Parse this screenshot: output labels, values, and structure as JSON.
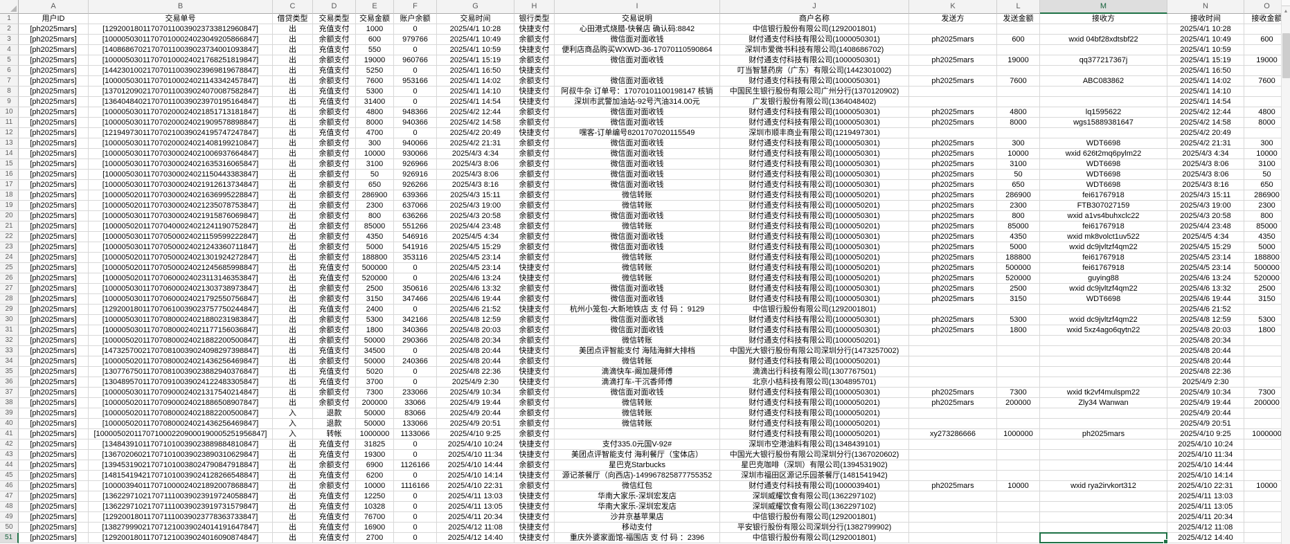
{
  "sheet": {
    "column_letters": [
      "A",
      "B",
      "C",
      "D",
      "E",
      "F",
      "G",
      "H",
      "I",
      "J",
      "K",
      "L",
      "M",
      "N",
      "O"
    ],
    "field_headers": [
      "用户ID",
      "交易单号",
      "借贷类型",
      "交易类型",
      "交易金额",
      "账户余额",
      "交易时间",
      "银行类型",
      "交易说明",
      "商户名称",
      "发送方",
      "发送金额",
      "接收方",
      "接收时间",
      "接收金额"
    ],
    "selection": {
      "column": "M",
      "row": 51
    },
    "rows": [
      [
        "[ph2025mars]",
        "[129200180117070110039023733812960847]",
        "出",
        "充值支付",
        "1000",
        "0",
        "2025/4/1 10:28",
        "快捷支付",
        "心田港式烧腊-快餐店 确认码:8842",
        "中信银行股份有限公司(1292001801)",
        "",
        "",
        "",
        "2025/4/1 10:28",
        ""
      ],
      [
        "[ph2025mars]",
        "[100005030117070100024023049205866847]",
        "出",
        "余额支付",
        "600",
        "979766",
        "2025/4/1 10:49",
        "余额支付",
        "微信面对面收钱",
        "财付通支付科技有限公司(1000050301)",
        "ph2025mars",
        "600",
        "wxid 04bf28xdtsbf22",
        "2025/4/1 10:49",
        "600"
      ],
      [
        "[ph2025mars]",
        "[140868670217070110039023734001093847]",
        "出",
        "充值支付",
        "550",
        "0",
        "2025/4/1 10:59",
        "快捷支付",
        "便利店商品购买WXWD-36-17070110590864",
        "深圳市爱微书科技有限公司(1408686702)",
        "",
        "",
        "",
        "2025/4/1 10:59",
        ""
      ],
      [
        "[ph2025mars]",
        "[100005030117070100024021768251819847]",
        "出",
        "余额支付",
        "19000",
        "960766",
        "2025/4/1 15:19",
        "余额支付",
        "微信面对面收钱",
        "财付通支付科技有限公司(1000050301)",
        "ph2025mars",
        "19000",
        "qq377217367j",
        "2025/4/1 15:19",
        "19000"
      ],
      [
        "[ph2025mars]",
        "[144230100217070110039023969819678847]",
        "出",
        "充值支付",
        "5250",
        "0",
        "2025/4/1 16:50",
        "快捷支付",
        "",
        "叮当智慧药房（广东）有限公司(1442301002)",
        "",
        "",
        "",
        "2025/4/1 16:50",
        ""
      ],
      [
        "[ph2025mars]",
        "[100005030117070100024021143342457847]",
        "出",
        "余额支付",
        "7600",
        "953166",
        "2025/4/1 14:02",
        "余额支付",
        "微信面对面收钱",
        "财付通支付科技有限公司(1000050301)",
        "ph2025mars",
        "7600",
        "ABC083862",
        "2025/4/1 14:02",
        "7600"
      ],
      [
        "[ph2025mars]",
        "[137012090217070110039024070087582847]",
        "出",
        "充值支付",
        "5300",
        "0",
        "2025/4/1 14:10",
        "快捷支付",
        "阿叔牛杂 订单号：17070101100198147 核销",
        "中国民生银行股份有限公司广州分行(1370120902)",
        "",
        "",
        "",
        "2025/4/1 14:10",
        ""
      ],
      [
        "[ph2025mars]",
        "[136404840217070110039023970195164847]",
        "出",
        "充值支付",
        "31400",
        "0",
        "2025/4/1 14:54",
        "快捷支付",
        "深圳市武警加油站-92号汽油314.00元",
        "广发银行股份有限公司(1364048402)",
        "",
        "",
        "",
        "2025/4/1 14:54",
        ""
      ],
      [
        "[ph2025mars]",
        "[100005030117070200024021851713181847]",
        "出",
        "余额支付",
        "4800",
        "948366",
        "2025/4/2 12:44",
        "余额支付",
        "微信面对面收钱",
        "财付通支付科技有限公司(1000050301)",
        "ph2025mars",
        "4800",
        "lq1595622",
        "2025/4/2 12:44",
        "4800"
      ],
      [
        "[ph2025mars]",
        "[100005030117070200024021909578898847]",
        "出",
        "余额支付",
        "8000",
        "940366",
        "2025/4/2 14:58",
        "余额支付",
        "微信面对面收钱",
        "财付通支付科技有限公司(1000050301)",
        "ph2025mars",
        "8000",
        "wgs15889381647",
        "2025/4/2 14:58",
        "8000"
      ],
      [
        "[ph2025mars]",
        "[121949730117070210039024195747247847]",
        "出",
        "充值支付",
        "4700",
        "0",
        "2025/4/2 20:49",
        "快捷支付",
        "嘿客-订单编号8201707020115549",
        "深圳市顺丰商业有限公司(1219497301)",
        "",
        "",
        "",
        "2025/4/2 20:49",
        ""
      ],
      [
        "[ph2025mars]",
        "[100005030117070200024021408199210847]",
        "出",
        "余额支付",
        "300",
        "940066",
        "2025/4/2 21:31",
        "余额支付",
        "微信面对面收钱",
        "财付通支付科技有限公司(1000050301)",
        "ph2025mars",
        "300",
        "WDT6698",
        "2025/4/2 21:31",
        "300"
      ],
      [
        "[ph2025mars]",
        "[100005030117070300024021006937664847]",
        "出",
        "余额支付",
        "10000",
        "930066",
        "2025/4/3 4:34",
        "余额支付",
        "微信面对面收钱",
        "财付通支付科技有限公司(1000050301)",
        "ph2025mars",
        "10000",
        "wxid 626t2mq6pylm22",
        "2025/4/3 4:34",
        "10000"
      ],
      [
        "[ph2025mars]",
        "[100005030117070300024021635316065847]",
        "出",
        "余额支付",
        "3100",
        "926966",
        "2025/4/3 8:06",
        "余额支付",
        "微信面对面收钱",
        "财付通支付科技有限公司(1000050301)",
        "ph2025mars",
        "3100",
        "WDT6698",
        "2025/4/3 8:06",
        "3100"
      ],
      [
        "[ph2025mars]",
        "[100005030117070300024021150443383847]",
        "出",
        "余额支付",
        "50",
        "926916",
        "2025/4/3 8:06",
        "余额支付",
        "微信面对面收钱",
        "财付通支付科技有限公司(1000050301)",
        "ph2025mars",
        "50",
        "WDT6698",
        "2025/4/3 8:06",
        "50"
      ],
      [
        "[ph2025mars]",
        "[100005030117070300024021912613734847]",
        "出",
        "余额支付",
        "650",
        "926266",
        "2025/4/3 8:16",
        "余额支付",
        "微信面对面收钱",
        "财付通支付科技有限公司(1000050301)",
        "ph2025mars",
        "650",
        "WDT6698",
        "2025/4/3 8:16",
        "650"
      ],
      [
        "[ph2025mars]",
        "[100005020117070300024021636995228847]",
        "出",
        "余额支付",
        "286900",
        "639366",
        "2025/4/3 15:11",
        "余额支付",
        "微信转账",
        "财付通支付科技有限公司(1000050201)",
        "ph2025mars",
        "286900",
        "fei61767918",
        "2025/4/3 15:11",
        "286900"
      ],
      [
        "[ph2025mars]",
        "[100005020117070300024021235078753847]",
        "出",
        "余额支付",
        "2300",
        "637066",
        "2025/4/3 19:00",
        "余额支付",
        "微信转账",
        "财付通支付科技有限公司(1000050201)",
        "ph2025mars",
        "2300",
        "FTB307027159",
        "2025/4/3 19:00",
        "2300"
      ],
      [
        "[ph2025mars]",
        "[100005030117070300024021915876069847]",
        "出",
        "余额支付",
        "800",
        "636266",
        "2025/4/3 20:58",
        "余额支付",
        "微信面对面收钱",
        "财付通支付科技有限公司(1000050301)",
        "ph2025mars",
        "800",
        "wxid a1vs4buhxclc22",
        "2025/4/3 20:58",
        "800"
      ],
      [
        "[ph2025mars]",
        "[100005020117070400024021241190752847]",
        "出",
        "余额支付",
        "85000",
        "551266",
        "2025/4/4 23:48",
        "余额支付",
        "微信转账",
        "财付通支付科技有限公司(1000050201)",
        "ph2025mars",
        "85000",
        "fei61767918",
        "2025/4/4 23:48",
        "85000"
      ],
      [
        "[ph2025mars]",
        "[100005030117070500024021159599222847]",
        "出",
        "余额支付",
        "4350",
        "546916",
        "2025/4/5 4:34",
        "余额支付",
        "微信面对面收钱",
        "财付通支付科技有限公司(1000050301)",
        "ph2025mars",
        "4350",
        "wxid mk8volct1uv522",
        "2025/4/5 4:34",
        "4350"
      ],
      [
        "[ph2025mars]",
        "[100005030117070500024021243360711847]",
        "出",
        "余额支付",
        "5000",
        "541916",
        "2025/4/5 15:29",
        "余额支付",
        "微信面对面收钱",
        "财付通支付科技有限公司(1000050301)",
        "ph2025mars",
        "5000",
        "wxid dc9jvltzf4qm22",
        "2025/4/5 15:29",
        "5000"
      ],
      [
        "[ph2025mars]",
        "[100005020117070500024021301924272847]",
        "出",
        "余额支付",
        "188800",
        "353116",
        "2025/4/5 23:14",
        "余额支付",
        "微信转账",
        "财付通支付科技有限公司(1000050201)",
        "ph2025mars",
        "188800",
        "fei61767918",
        "2025/4/5 23:14",
        "188800"
      ],
      [
        "[ph2025mars]",
        "[100005020117070500024021245685998847]",
        "出",
        "充值支付",
        "500000",
        "0",
        "2025/4/5 23:14",
        "快捷支付",
        "微信转账",
        "财付通支付科技有限公司(1000050201)",
        "ph2025mars",
        "500000",
        "fei61767918",
        "2025/4/5 23:14",
        "500000"
      ],
      [
        "[ph2025mars]",
        "[100005020117070600024023113146353847]",
        "出",
        "充值支付",
        "520000",
        "0",
        "2025/4/6 13:24",
        "快捷支付",
        "微信转账",
        "财付通支付科技有限公司(1000050201)",
        "ph2025mars",
        "520000",
        "guying88",
        "2025/4/6 13:24",
        "520000"
      ],
      [
        "[ph2025mars]",
        "[100005030117070600024021303738973847]",
        "出",
        "余额支付",
        "2500",
        "350616",
        "2025/4/6 13:32",
        "余额支付",
        "微信面对面收钱",
        "财付通支付科技有限公司(1000050301)",
        "ph2025mars",
        "2500",
        "wxid dc9jvltzf4qm22",
        "2025/4/6 13:32",
        "2500"
      ],
      [
        "[ph2025mars]",
        "[100005030117070600024021792550756847]",
        "出",
        "余额支付",
        "3150",
        "347466",
        "2025/4/6 19:44",
        "余额支付",
        "微信面对面收钱",
        "财付通支付科技有限公司(1000050301)",
        "ph2025mars",
        "3150",
        "WDT6698",
        "2025/4/6 19:44",
        "3150"
      ],
      [
        "[ph2025mars]",
        "[129200180117070610039023757750244847]",
        "出",
        "充值支付",
        "2400",
        "0",
        "2025/4/6 21:52",
        "快捷支付",
        "杭州小笼包-大新地铁店 支 付 码 ：9129",
        "中信银行股份有限公司(1292001801)",
        "",
        "",
        "",
        "2025/4/6 21:52",
        ""
      ],
      [
        "[ph2025mars]",
        "[100005030117070800024021880231983847]",
        "出",
        "余额支付",
        "5300",
        "342166",
        "2025/4/8 12:59",
        "余额支付",
        "微信面对面收钱",
        "财付通支付科技有限公司(1000050301)",
        "ph2025mars",
        "5300",
        "wxid dc9jvltzf4qm22",
        "2025/4/8 12:59",
        "5300"
      ],
      [
        "[ph2025mars]",
        "[100005030117070800024021177156036847]",
        "出",
        "余额支付",
        "1800",
        "340366",
        "2025/4/8 20:03",
        "余额支付",
        "微信面对面收钱",
        "财付通支付科技有限公司(1000050301)",
        "ph2025mars",
        "1800",
        "wxid 5xz4ago6qytn22",
        "2025/4/8 20:03",
        "1800"
      ],
      [
        "[ph2025mars]",
        "[100005020117070800024021882200500847]",
        "出",
        "余额支付",
        "50000",
        "290366",
        "2025/4/8 20:34",
        "余额支付",
        "微信转账",
        "财付通支付科技有限公司(1000050201)",
        "",
        "",
        "",
        "2025/4/8 20:34",
        ""
      ],
      [
        "[ph2025mars]",
        "[147325700217070810039024098297398847]",
        "出",
        "充值支付",
        "34500",
        "0",
        "2025/4/8 20:44",
        "快捷支付",
        "美团点评智能支付 海陆海鲜大排档",
        "中国光大银行股份有限公司深圳分行(1473257002)",
        "",
        "",
        "",
        "2025/4/8 20:44",
        ""
      ],
      [
        "[ph2025mars]",
        "[100005020117070800024021436256469847]",
        "出",
        "余额支付",
        "50000",
        "240366",
        "2025/4/8 20:44",
        "余额支付",
        "微信转账",
        "财付通支付科技有限公司(1000050201)",
        "",
        "",
        "",
        "2025/4/8 20:44",
        ""
      ],
      [
        "[ph2025mars]",
        "[130776750117070810039023882940376847]",
        "出",
        "充值支付",
        "5020",
        "0",
        "2025/4/8 22:36",
        "快捷支付",
        "滴滴快车-阚加晟师傅",
        "滴滴出行科技有限公司(1307767501)",
        "",
        "",
        "",
        "2025/4/8 22:36",
        ""
      ],
      [
        "[ph2025mars]",
        "[130489570117070910039024122483305847]",
        "出",
        "充值支付",
        "3700",
        "0",
        "2025/4/9 2:30",
        "快捷支付",
        "滴滴打车-干沉香师傅",
        "北京小桔科技有限公司(1304895701)",
        "",
        "",
        "",
        "2025/4/9 2:30",
        ""
      ],
      [
        "[ph2025mars]",
        "[100005030117070900024021317540214847]",
        "出",
        "余额支付",
        "7300",
        "233066",
        "2025/4/9 10:34",
        "余额支付",
        "微信面对面收钱",
        "财付通支付科技有限公司(1000050301)",
        "ph2025mars",
        "7300",
        "wxid tk2vf4mulspm22",
        "2025/4/9 10:34",
        "7300"
      ],
      [
        "[ph2025mars]",
        "[100005020117070900024021886508907847]",
        "出",
        "余额支付",
        "200000",
        "33066",
        "2025/4/9 19:44",
        "余额支付",
        "微信转账",
        "财付通支付科技有限公司(1000050201)",
        "ph2025mars",
        "200000",
        "Zly34 Wanwan",
        "2025/4/9 19:44",
        "200000"
      ],
      [
        "[ph2025mars]",
        "[100005020117070800024021882200500847]",
        "入",
        "退款",
        "50000",
        "83066",
        "2025/4/9 20:44",
        "余额支付",
        "微信转账",
        "财付通支付科技有限公司(1000050201)",
        "",
        "",
        "",
        "2025/4/9 20:44",
        ""
      ],
      [
        "[ph2025mars]",
        "[100005020117070800024021436256469847]",
        "入",
        "退款",
        "50000",
        "133066",
        "2025/4/9 20:51",
        "余额支付",
        "微信转账",
        "财付通支付科技有限公司(1000050201)",
        "",
        "",
        "",
        "2025/4/9 20:51",
        ""
      ],
      [
        "[ph2025mars]",
        "[1000050201170710002209000190005251956847]",
        "入",
        "转帐",
        "1000000",
        "1133066",
        "2025/4/10 9:25",
        "余额支付",
        "",
        "财付通支付科技有限公司(1000050201)",
        "xy273286666",
        "1000000",
        "ph2025mars",
        "2025/4/10 9:25",
        "1000000"
      ],
      [
        "[ph2025mars]",
        "[134843910117071010039023889884810847]",
        "出",
        "充值支付",
        "31825",
        "0",
        "2025/4/10 10:24",
        "快捷支付",
        "支付335.0元国V-92#",
        "深圳市空港油料有限公司(1348439101)",
        "",
        "",
        "",
        "2025/4/10 10:24",
        ""
      ],
      [
        "[ph2025mars]",
        "[136702060217071010039023890310629847]",
        "出",
        "充值支付",
        "19300",
        "0",
        "2025/4/10 11:34",
        "快捷支付",
        "美团点评智能支付 海利餐厅（宝体店）",
        "中国光大银行股份有限公司深圳分行(1367020602)",
        "",
        "",
        "",
        "2025/4/10 11:34",
        ""
      ],
      [
        "[ph2025mars]",
        "[139453190217071010038024790847918847]",
        "出",
        "余额支付",
        "6900",
        "1126166",
        "2025/4/10 14:44",
        "余额支付",
        "星巴克Starbucks",
        "星巴克咖啡（深圳）有限公司(1394531902)",
        "",
        "",
        "",
        "2025/4/10 14:44",
        ""
      ],
      [
        "[ph2025mars]",
        "[148154194217071010039024128266548847]",
        "出",
        "充值支付",
        "6200",
        "0",
        "2025/4/10 14:14",
        "快捷支付",
        "源记茶餐厅（向西店)-149967825877755352",
        "深圳市福田区源记乐园茶餐厅(1481541942)",
        "",
        "",
        "",
        "2025/4/10 14:14",
        ""
      ],
      [
        "[ph2025mars]",
        "[100003940117071000024021892007868847]",
        "出",
        "余额支付",
        "10000",
        "1116166",
        "2025/4/10 22:31",
        "余额支付",
        "微信红包",
        "财付通支付科技有限公司(1000039401)",
        "ph2025mars",
        "10000",
        "wxid rya2irvkort312",
        "2025/4/10 22:31",
        "10000"
      ],
      [
        "[ph2025mars]",
        "[136229710217071110039023919724058847]",
        "出",
        "充值支付",
        "12250",
        "0",
        "2025/4/11 13:03",
        "快捷支付",
        "华南大家乐-深圳宏发店",
        "深圳威耀饮食有限公司(1362297102)",
        "",
        "",
        "",
        "2025/4/11 13:03",
        ""
      ],
      [
        "[ph2025mars]",
        "[136229710217071110039023919731579847]",
        "出",
        "充值支付",
        "10328",
        "0",
        "2025/4/11 13:05",
        "快捷支付",
        "华南大家乐-深圳宏发店",
        "深圳威耀饮食有限公司(1362297102)",
        "",
        "",
        "",
        "2025/4/11 13:05",
        ""
      ],
      [
        "[ph2025mars]",
        "[129200180117071110039023778363733847]",
        "出",
        "充值支付",
        "76700",
        "0",
        "2025/4/11 20:34",
        "快捷支付",
        "沙井京基苹果店",
        "中信银行股份有限公司(1292001801)",
        "",
        "",
        "",
        "2025/4/11 20:34",
        ""
      ],
      [
        "[ph2025mars]",
        "[138279990217071210039024014191647847]",
        "出",
        "充值支付",
        "16900",
        "0",
        "2025/4/12 11:08",
        "快捷支付",
        "移动支付",
        "平安银行股份有限公司深圳分行(1382799902)",
        "",
        "",
        "",
        "2025/4/12 11:08",
        ""
      ],
      [
        "[ph2025mars]",
        "[129200180117071210039024016090874847]",
        "出",
        "充值支付",
        "2700",
        "0",
        "2025/4/12 14:40",
        "快捷支付",
        "重庆外婆家面馆-福围店 支 付 码 ：2396",
        "中信银行股份有限公司(1292001801)",
        "",
        "",
        "",
        "2025/4/12 14:40",
        ""
      ]
    ]
  },
  "scrollbar": {
    "up_arrow": "▲"
  },
  "colors": {
    "selection_green": "#1e7145",
    "header_bg": "#f3f3f3",
    "selected_header_bg": "#dedede",
    "grid_line": "#d8d8d8"
  }
}
